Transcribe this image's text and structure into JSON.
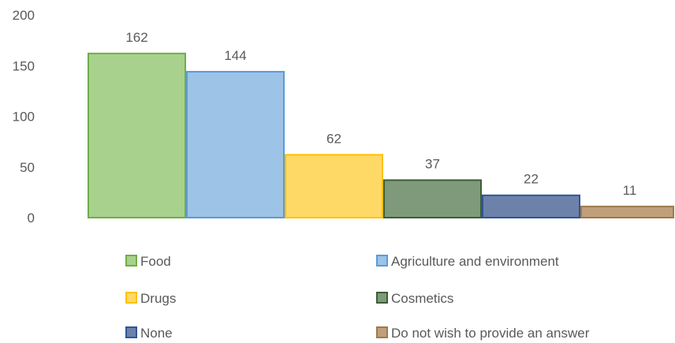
{
  "chart_data": {
    "type": "bar",
    "title": "",
    "xlabel": "",
    "ylabel": "",
    "ylim": [
      0,
      200
    ],
    "yticks": [
      0,
      50,
      100,
      150,
      200
    ],
    "grid": false,
    "legend_position": "bottom",
    "series": [
      {
        "name": "Food",
        "value": 162,
        "fill": "#a9d18e",
        "stroke": "#70ad47"
      },
      {
        "name": "Agriculture and environment",
        "value": 144,
        "fill": "#9dc3e6",
        "stroke": "#5b9bd5"
      },
      {
        "name": "Drugs",
        "value": 62,
        "fill": "#ffd966",
        "stroke": "#ffc000"
      },
      {
        "name": "Cosmetics",
        "value": 37,
        "fill": "#7f9a7a",
        "stroke": "#3d5e36"
      },
      {
        "name": "None",
        "value": 22,
        "fill": "#6d82aa",
        "stroke": "#2f5597"
      },
      {
        "name": "Do not wish to provide an answer",
        "value": 11,
        "fill": "#bfa07a",
        "stroke": "#9c7a4e"
      }
    ]
  }
}
